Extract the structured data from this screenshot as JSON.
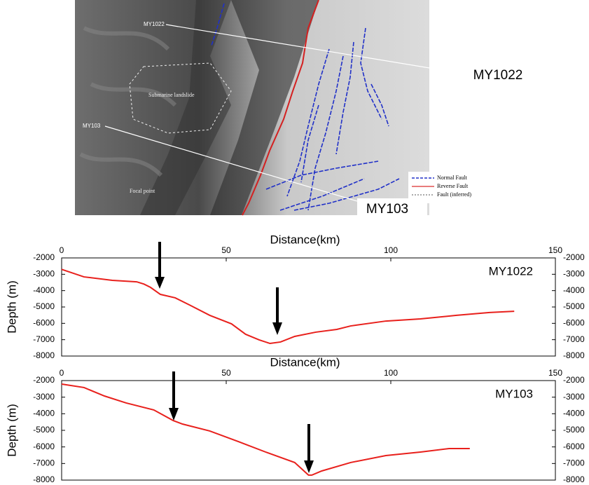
{
  "map": {
    "callouts": [
      "MY1022",
      "MY103"
    ],
    "labels": [
      "MY1022",
      "MY103",
      "Submarine landslide",
      "Focal point"
    ],
    "legend": [
      "Normal Fault",
      "Reverse Fault",
      "Fault (inferred)"
    ]
  },
  "chart_data": [
    {
      "type": "line",
      "x_label": "Distance(km)",
      "y_label": "Depth (m)",
      "xlim": [
        0,
        150
      ],
      "ylim": [
        -8000,
        -2000
      ],
      "xticks": [
        0,
        50,
        100,
        150
      ],
      "yticks": [
        -2000,
        -3000,
        -4000,
        -5000,
        -6000,
        -7000,
        -8000
      ],
      "x": [
        0,
        6.8,
        15.4,
        22.8,
        25,
        27,
        30,
        34.5,
        38.8,
        45,
        51.6,
        55.9,
        60,
        63.3,
        66.5,
        70.8,
        77.2,
        83.6,
        87.8,
        98.5,
        109,
        120,
        130,
        137.5
      ],
      "series": [
        {
          "name": "MY1022",
          "color": "#e8201c",
          "values": [
            -2700,
            -3160,
            -3370,
            -3460,
            -3600,
            -3800,
            -4230,
            -4440,
            -4870,
            -5510,
            -6030,
            -6670,
            -7010,
            -7230,
            -7140,
            -6800,
            -6540,
            -6370,
            -6160,
            -5860,
            -5730,
            -5510,
            -5340,
            -5260
          ]
        }
      ]
    },
    {
      "type": "line",
      "x_label": "Distance(km)",
      "y_label": "Depth (m)",
      "xlim": [
        0,
        150
      ],
      "ylim": [
        -8000,
        -2000
      ],
      "xticks": [
        0,
        50,
        100,
        150
      ],
      "yticks": [
        -2000,
        -3000,
        -4000,
        -5000,
        -6000,
        -7000,
        -8000
      ],
      "x": [
        0,
        6.8,
        13,
        19.6,
        28,
        33.9,
        36.7,
        45,
        53.7,
        62,
        70.8,
        75,
        76,
        79,
        87.8,
        98.5,
        109,
        117.7,
        124
      ],
      "series": [
        {
          "name": "MY103",
          "color": "#e8201c",
          "values": [
            -2210,
            -2420,
            -2930,
            -3350,
            -3770,
            -4410,
            -4620,
            -5040,
            -5680,
            -6310,
            -6940,
            -7700,
            -7700,
            -7450,
            -6940,
            -6520,
            -6310,
            -6100,
            -6100
          ]
        }
      ]
    }
  ]
}
